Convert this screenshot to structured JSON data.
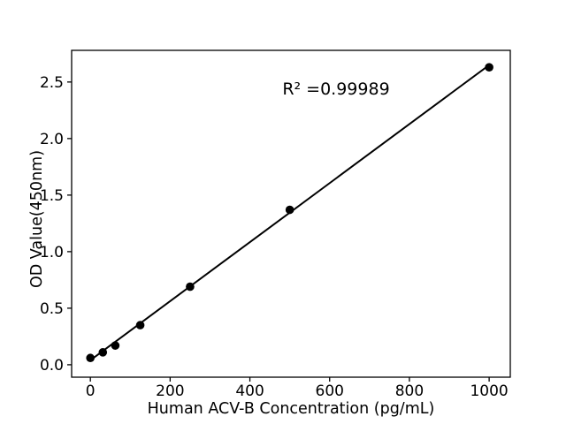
{
  "chart_data": {
    "type": "scatter",
    "title": "",
    "xlabel": "Human ACV-B Concentration (pg/mL)",
    "ylabel": "OD Value(450nm)",
    "annotation": "R² =0.99989",
    "x": [
      0,
      31.25,
      62.5,
      125,
      250,
      500,
      1000
    ],
    "y": [
      0.06,
      0.11,
      0.17,
      0.35,
      0.69,
      1.37,
      2.63
    ],
    "fit_line": {
      "x": [
        0,
        1000
      ],
      "y": [
        0.04,
        2.65
      ]
    },
    "xticks": {
      "values": [
        0,
        200,
        400,
        600,
        800,
        1000
      ],
      "labels": [
        "0",
        "200",
        "400",
        "600",
        "800",
        "1000"
      ]
    },
    "yticks": {
      "values": [
        0,
        0.5,
        1.0,
        1.5,
        2.0,
        2.5
      ],
      "labels": [
        "0.0",
        "0.5",
        "1.0",
        "1.5",
        "2.0",
        "2.5"
      ]
    },
    "xlim": [
      -47,
      1053
    ],
    "ylim": [
      -0.11,
      2.78
    ],
    "grid": false,
    "legend": null,
    "marker_color": "#000000",
    "line_color": "#000000",
    "axis_color": "#000000",
    "background_color": "#ffffff"
  }
}
